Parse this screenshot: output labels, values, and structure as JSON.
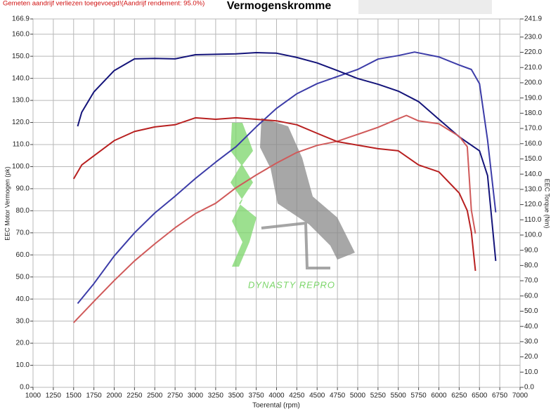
{
  "chart_data": {
    "type": "line",
    "title": "Vermogenskromme",
    "note": "Gemeten aandrijf verliezen toegevoegd!(Aandrijf rendement: 95.0%)",
    "watermark": "DYNASTY REPRO",
    "x_label": "Toerental (rpm)",
    "y_label": "EEC Motor Vermogen (pk)",
    "y2_label": "EEC Torque (Nm)",
    "grid": true,
    "xlim": [
      1000,
      7000
    ],
    "xticks": [
      1000,
      1250,
      1500,
      1750,
      2000,
      2250,
      2500,
      2750,
      3000,
      3250,
      3500,
      3750,
      4000,
      4250,
      4500,
      4750,
      5000,
      5250,
      5500,
      5750,
      6000,
      6250,
      6500,
      6750,
      7000
    ],
    "ylim": [
      0,
      166.9
    ],
    "yticks": [
      {
        "value": 0,
        "label": "0.0"
      },
      {
        "value": 10,
        "label": "10.0"
      },
      {
        "value": 20,
        "label": "20.0"
      },
      {
        "value": 30,
        "label": "30.0"
      },
      {
        "value": 40,
        "label": "40.0"
      },
      {
        "value": 50,
        "label": "50.0"
      },
      {
        "value": 60,
        "label": "60.0"
      },
      {
        "value": 70,
        "label": "70.0"
      },
      {
        "value": 80,
        "label": "80.0"
      },
      {
        "value": 90,
        "label": "90.0"
      },
      {
        "value": 100,
        "label": "100.0"
      },
      {
        "value": 110,
        "label": "110.0"
      },
      {
        "value": 120,
        "label": "120.0"
      },
      {
        "value": 130,
        "label": "130.0"
      },
      {
        "value": 140,
        "label": "140.0"
      },
      {
        "value": 150,
        "label": "150.0"
      },
      {
        "value": 160,
        "label": "160.0"
      },
      166.9
    ],
    "y2lim": [
      0,
      241.9
    ],
    "y2ticks": [
      {
        "value": 0,
        "label": "0.0"
      },
      {
        "value": 10,
        "label": "10.0"
      },
      {
        "value": 20,
        "label": "20.0"
      },
      {
        "value": 30,
        "label": "30.0"
      },
      {
        "value": 40,
        "label": "40.0"
      },
      {
        "value": 50,
        "label": "50.0"
      },
      {
        "value": 60,
        "label": "60.0"
      },
      {
        "value": 70,
        "label": "70.0"
      },
      {
        "value": 80,
        "label": "80.0"
      },
      {
        "value": 90,
        "label": "90.0"
      },
      {
        "value": 100,
        "label": "100.0"
      },
      {
        "value": 110,
        "label": "110.0"
      },
      {
        "value": 120,
        "label": "120.0"
      },
      {
        "value": 130,
        "label": "130.0"
      },
      {
        "value": 140,
        "label": "140.0"
      },
      {
        "value": 150,
        "label": "150.0"
      },
      {
        "value": 160,
        "label": "160.0"
      },
      {
        "value": 170,
        "label": "170.0"
      },
      {
        "value": 180,
        "label": "180.0"
      },
      {
        "value": 190,
        "label": "190.0"
      },
      {
        "value": 200,
        "label": "200.0"
      },
      {
        "value": 210,
        "label": "210.0"
      },
      {
        "value": 220,
        "label": "220.0"
      },
      {
        "value": 230,
        "label": "230.0"
      },
      241.9
    ],
    "series": [
      {
        "color": "#3c3ca8",
        "x": [
          1550,
          1750,
          2000,
          2250,
          2500,
          2750,
          3000,
          3250,
          3500,
          3750,
          4000,
          4250,
          4500,
          4750,
          5000,
          5250,
          5500,
          5700,
          6000,
          6250,
          6400,
          6500,
          6600,
          6700
        ],
        "values": [
          38,
          47,
          59.5,
          70,
          79,
          86.6,
          94.6,
          102,
          109,
          118,
          126.4,
          133,
          137.6,
          140.8,
          144,
          148.7,
          150.3,
          151.9,
          149.7,
          146,
          144,
          137.6,
          112,
          79.3
        ]
      },
      {
        "color": "#14147a",
        "axis": "y2",
        "x": [
          1550,
          1600,
          1750,
          2000,
          2250,
          2500,
          2750,
          3000,
          3500,
          3750,
          4000,
          4250,
          4500,
          4750,
          5000,
          5250,
          5500,
          5750,
          6000,
          6250,
          6500,
          6600,
          6700
        ],
        "values": [
          171.4,
          180.6,
          194,
          208,
          215.7,
          216,
          215.7,
          218.4,
          219,
          219.8,
          219.4,
          216.6,
          213,
          208,
          202.8,
          199,
          194.5,
          187.6,
          176,
          164.5,
          155.3,
          139,
          83
        ]
      },
      {
        "color": "#d05a5a",
        "x": [
          1500,
          1750,
          2000,
          2250,
          2500,
          2750,
          3000,
          3250,
          3500,
          3750,
          4000,
          4250,
          4500,
          4750,
          5000,
          5250,
          5500,
          5600,
          5750,
          6000,
          6250,
          6350,
          6400,
          6450
        ],
        "values": [
          29.3,
          38.9,
          48.4,
          57.3,
          65,
          72.3,
          78.7,
          83.4,
          90.4,
          96.2,
          101.6,
          106.4,
          109.6,
          111.5,
          114.6,
          117.8,
          121.7,
          123.2,
          120.7,
          119.4,
          113.7,
          109,
          80.3,
          69.7
        ]
      },
      {
        "color": "#b82020",
        "axis": "y2",
        "x": [
          1500,
          1600,
          1750,
          2000,
          2250,
          2500,
          2750,
          3000,
          3250,
          3500,
          3750,
          4000,
          4250,
          4500,
          4750,
          5000,
          5250,
          5500,
          5750,
          6000,
          6250,
          6350,
          6400,
          6450
        ],
        "values": [
          136.9,
          146,
          152,
          162,
          168,
          171,
          172.4,
          177,
          176,
          177,
          176,
          175,
          172.4,
          166.8,
          161.3,
          159,
          156.7,
          155.3,
          146,
          141.5,
          127.6,
          116,
          102,
          76.5
        ]
      }
    ]
  }
}
